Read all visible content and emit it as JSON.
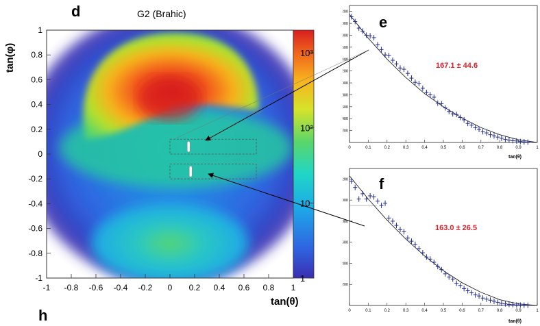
{
  "chart_data": [
    {
      "id": "d",
      "type": "heatmap",
      "panel_letter": "d",
      "title": "G2 (Brahic)",
      "xlabel": "tan(θ)",
      "ylabel": "tan(φ)",
      "xlim": [
        -1,
        1
      ],
      "ylim": [
        -1,
        1
      ],
      "x_ticks": [
        "-1",
        "-0.8",
        "-0.6",
        "-0.4",
        "-0.2",
        "0",
        "0.2",
        "0.4",
        "0.6",
        "0.8",
        "1"
      ],
      "y_ticks": [
        "-1",
        "-0.8",
        "-0.6",
        "-0.4",
        "-0.2",
        "0",
        "0.2",
        "0.4",
        "0.6",
        "0.8",
        "1"
      ],
      "colorbar": {
        "scale": "log",
        "range": [
          1,
          2000
        ],
        "ticks": [
          "1",
          "10",
          "10²",
          "10³"
        ],
        "tick_values": [
          1,
          10,
          100,
          1000
        ]
      },
      "selection_boxes": [
        {
          "x": [
            0.0,
            0.7
          ],
          "y": [
            0.0,
            0.12
          ],
          "target": "e"
        },
        {
          "x": [
            0.0,
            0.7
          ],
          "y": [
            -0.2,
            -0.08
          ],
          "target": "f"
        }
      ]
    },
    {
      "id": "e",
      "type": "scatter",
      "panel_letter": "e",
      "annotation": "167.1 ± 44.6",
      "xlabel": "tan(θ)",
      "xlim": [
        0,
        1
      ],
      "ylim": [
        0,
        2300
      ],
      "x_ticks": [
        "0",
        "0.1",
        "0.2",
        "0.3",
        "0.4",
        "0.5",
        "0.6",
        "0.7",
        "0.8",
        "0.9",
        "1"
      ],
      "y_ticks": [
        "200",
        "400",
        "600",
        "800",
        "1000",
        "1200",
        "1400",
        "1600",
        "1800",
        "2000",
        "2200"
      ],
      "x": [
        0.01,
        0.03,
        0.05,
        0.07,
        0.09,
        0.11,
        0.13,
        0.15,
        0.17,
        0.19,
        0.21,
        0.23,
        0.25,
        0.27,
        0.29,
        0.31,
        0.33,
        0.35,
        0.37,
        0.39,
        0.41,
        0.43,
        0.45,
        0.47,
        0.49,
        0.51,
        0.53,
        0.55,
        0.57,
        0.59,
        0.61,
        0.63,
        0.65,
        0.67,
        0.69,
        0.71,
        0.73,
        0.75,
        0.77,
        0.79,
        0.81,
        0.83,
        0.85,
        0.87,
        0.89,
        0.91,
        0.93,
        0.95
      ],
      "y": [
        2110,
        2030,
        1920,
        1870,
        1800,
        1790,
        1760,
        1640,
        1560,
        1470,
        1460,
        1380,
        1320,
        1250,
        1230,
        1160,
        1080,
        1010,
        990,
        910,
        840,
        800,
        760,
        660,
        650,
        580,
        520,
        480,
        470,
        420,
        380,
        320,
        290,
        250,
        220,
        180,
        160,
        130,
        110,
        90,
        70,
        50,
        40,
        30,
        25,
        15,
        10,
        5
      ],
      "fit": {
        "x": [
          0,
          0.1,
          0.2,
          0.3,
          0.4,
          0.5,
          0.6,
          0.7,
          0.8,
          0.9,
          1.0
        ],
        "y": [
          2150,
          1750,
          1400,
          1090,
          820,
          600,
          410,
          250,
          130,
          45,
          0
        ]
      }
    },
    {
      "id": "f",
      "type": "scatter",
      "panel_letter": "f",
      "annotation": "163.0 ± 26.5",
      "xlabel": "tan(θ)",
      "xlim": [
        0,
        1
      ],
      "ylim": [
        0,
        1300
      ],
      "x_ticks": [
        "0",
        "0.1",
        "0.2",
        "0.3",
        "0.4",
        "0.5",
        "0.6",
        "0.7",
        "0.8",
        "0.9",
        "1"
      ],
      "y_ticks": [
        "200",
        "400",
        "600",
        "800",
        "1000",
        "1200"
      ],
      "x": [
        0.01,
        0.03,
        0.05,
        0.07,
        0.09,
        0.11,
        0.13,
        0.15,
        0.17,
        0.19,
        0.21,
        0.23,
        0.25,
        0.27,
        0.29,
        0.31,
        0.33,
        0.35,
        0.37,
        0.39,
        0.41,
        0.43,
        0.45,
        0.47,
        0.49,
        0.51,
        0.53,
        0.55,
        0.57,
        0.59,
        0.61,
        0.63,
        0.65,
        0.67,
        0.69,
        0.71,
        0.73,
        0.75,
        0.77,
        0.79,
        0.81,
        0.83,
        0.85,
        0.87,
        0.89,
        0.91,
        0.93,
        0.95
      ],
      "y": [
        1180,
        1120,
        1010,
        1060,
        1010,
        1040,
        1030,
        990,
        950,
        970,
        830,
        800,
        760,
        720,
        700,
        640,
        610,
        580,
        540,
        500,
        460,
        440,
        410,
        370,
        340,
        300,
        270,
        250,
        210,
        190,
        160,
        140,
        120,
        100,
        90,
        70,
        60,
        50,
        40,
        30,
        20,
        15,
        10,
        8,
        5,
        4,
        3,
        2
      ],
      "fit": {
        "x": [
          0,
          0.1,
          0.2,
          0.3,
          0.4,
          0.5,
          0.6,
          0.7,
          0.8,
          0.9,
          1.0
        ],
        "y": [
          1230,
          1010,
          810,
          630,
          470,
          330,
          215,
          125,
          55,
          15,
          0
        ]
      }
    }
  ],
  "bottom_letter": "h"
}
